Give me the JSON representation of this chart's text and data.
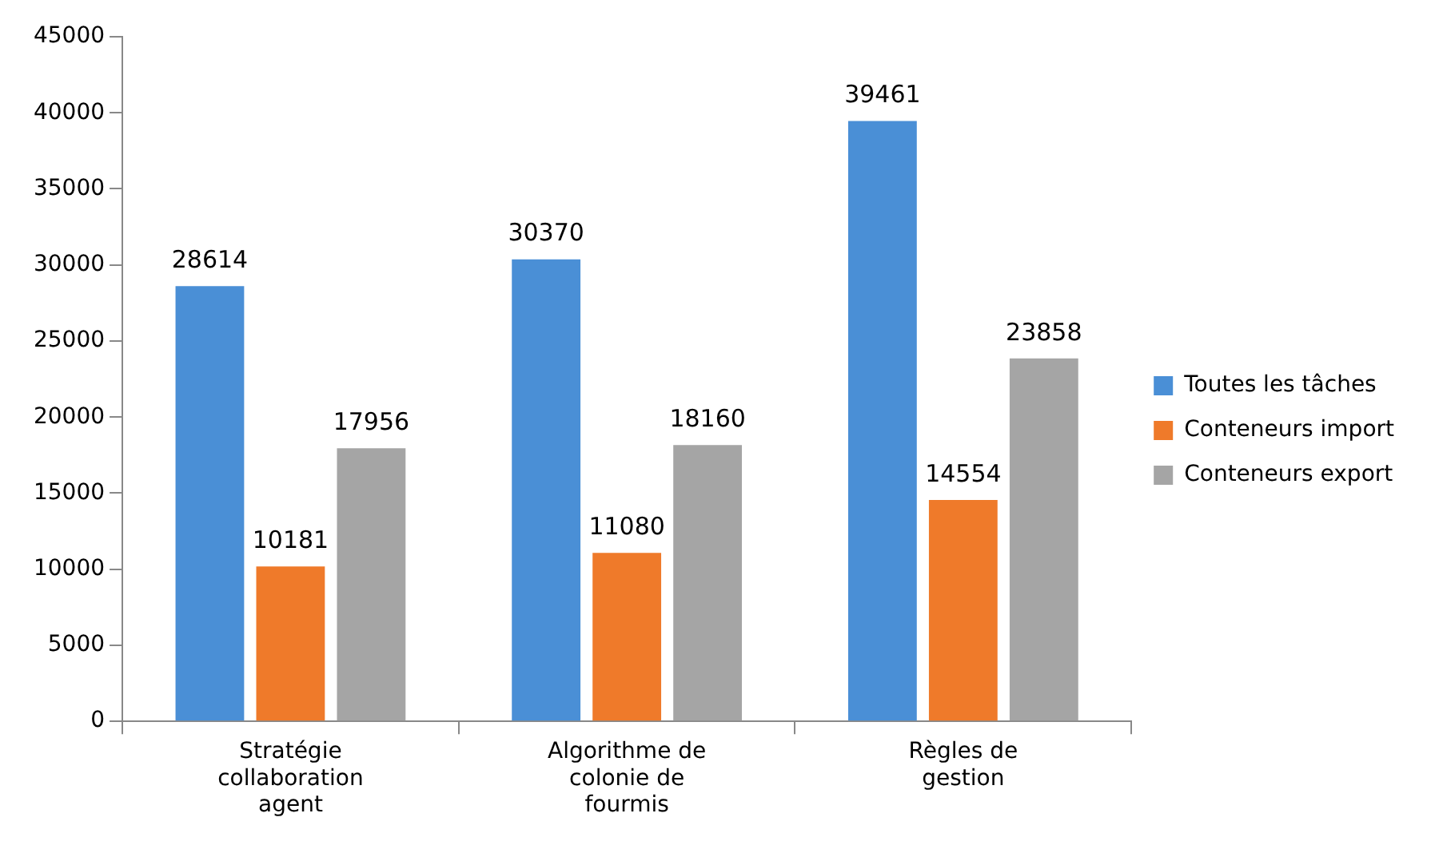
{
  "chart_data": {
    "type": "bar",
    "categories": [
      "Stratégie collaboration agent",
      "Algorithme de colonie de fourmis",
      "Règles de gestion"
    ],
    "series": [
      {
        "name": "Toutes les tâches",
        "color": "#4a8fd6",
        "values": [
          28614,
          30370,
          39461
        ]
      },
      {
        "name": "Conteneurs import",
        "color": "#ef7a2a",
        "values": [
          10181,
          11080,
          14554
        ]
      },
      {
        "name": "Conteneurs export",
        "color": "#a5a5a5",
        "values": [
          17956,
          18160,
          23858
        ]
      }
    ],
    "ylim": [
      0,
      45000
    ],
    "yticks": [
      0,
      5000,
      10000,
      15000,
      20000,
      25000,
      30000,
      35000,
      40000,
      45000
    ],
    "grid": false,
    "legend": "right",
    "data_labels": true
  }
}
